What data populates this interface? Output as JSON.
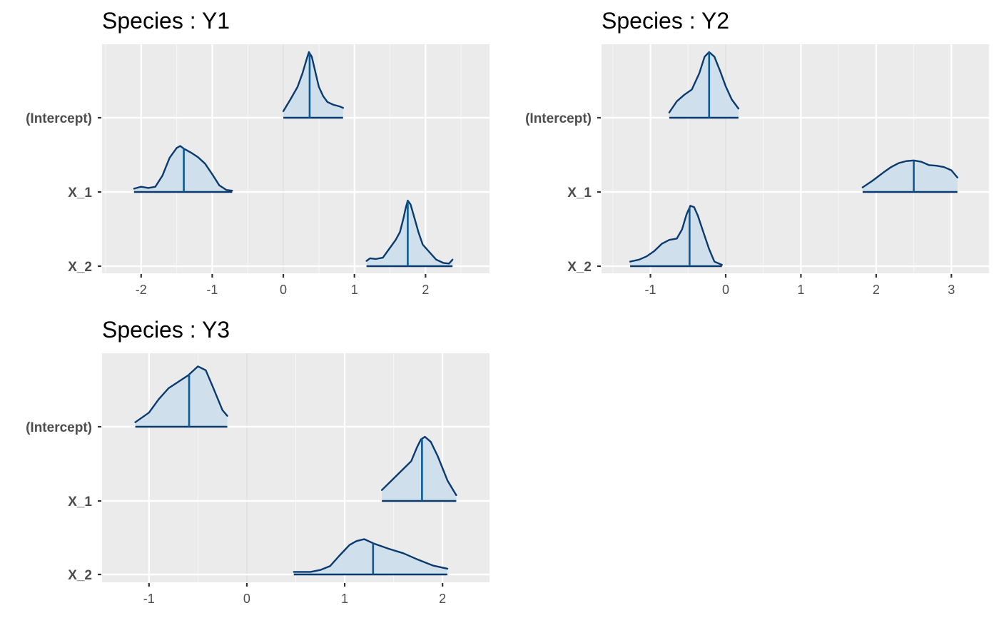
{
  "colors": {
    "panel_background": "#ebebeb",
    "grid_major": "#ffffff",
    "grid_minor": "#f5f5f5",
    "zero_line": "#dcdcdc",
    "density_line": "#0b3a6e",
    "density_fill": "#cfe0ec",
    "median_line": "#0c5a94",
    "tick": "#333333"
  },
  "chart_data": [
    {
      "type": "density-ridges",
      "title": "Species : Y1",
      "xlim": [
        -2.55,
        2.9
      ],
      "x_ticks": [
        -2,
        -1,
        0,
        1,
        2
      ],
      "x_tick_labels": [
        "-2",
        "-1",
        "0",
        "1",
        "2"
      ],
      "categories": [
        "(Intercept)",
        "X_1",
        "X_2"
      ],
      "grid": true,
      "series": [
        {
          "x": [
            0.0,
            0.1,
            0.2,
            0.27,
            0.33,
            0.36,
            0.4,
            0.45,
            0.5,
            0.56,
            0.62,
            0.7,
            0.8,
            0.84
          ],
          "density": [
            0.1,
            0.28,
            0.47,
            0.68,
            0.9,
            1.0,
            0.93,
            0.7,
            0.47,
            0.33,
            0.24,
            0.2,
            0.17,
            0.15
          ],
          "range": [
            0.0,
            0.84
          ],
          "median": 0.37
        },
        {
          "x": [
            -2.1,
            -2.0,
            -1.9,
            -1.8,
            -1.7,
            -1.6,
            -1.5,
            -1.45,
            -1.4,
            -1.3,
            -1.2,
            -1.1,
            -1.0,
            -0.9,
            -0.8,
            -0.72
          ],
          "density": [
            0.05,
            0.08,
            0.06,
            0.08,
            0.25,
            0.52,
            0.67,
            0.7,
            0.66,
            0.6,
            0.53,
            0.43,
            0.27,
            0.1,
            0.03,
            0.02
          ],
          "range": [
            -2.1,
            -0.72
          ],
          "median": -1.4
        },
        {
          "x": [
            1.17,
            1.22,
            1.3,
            1.4,
            1.5,
            1.58,
            1.64,
            1.69,
            1.72,
            1.75,
            1.79,
            1.84,
            1.9,
            1.96,
            2.05,
            2.15,
            2.25,
            2.33,
            2.38
          ],
          "density": [
            0.08,
            0.12,
            0.11,
            0.13,
            0.28,
            0.4,
            0.52,
            0.73,
            0.88,
            1.0,
            0.94,
            0.75,
            0.52,
            0.33,
            0.22,
            0.1,
            0.05,
            0.04,
            0.1
          ],
          "range": [
            1.17,
            2.38
          ],
          "median": 1.75
        }
      ]
    },
    {
      "type": "density-ridges",
      "title": "Species : Y2",
      "xlim": [
        -1.65,
        3.5
      ],
      "x_ticks": [
        -1,
        0,
        1,
        2,
        3
      ],
      "x_tick_labels": [
        "-1",
        "0",
        "1",
        "2",
        "3"
      ],
      "categories": [
        "(Intercept)",
        "X_1",
        "X_2"
      ],
      "grid": true,
      "series": [
        {
          "x": [
            -0.75,
            -0.65,
            -0.55,
            -0.45,
            -0.35,
            -0.28,
            -0.22,
            -0.15,
            -0.07,
            0.0,
            0.08,
            0.17
          ],
          "density": [
            0.08,
            0.25,
            0.35,
            0.43,
            0.68,
            0.93,
            1.0,
            0.93,
            0.7,
            0.48,
            0.28,
            0.14
          ],
          "range": [
            -0.75,
            0.17
          ],
          "median": -0.22
        },
        {
          "x": [
            1.82,
            1.95,
            2.1,
            2.2,
            2.3,
            2.4,
            2.5,
            2.6,
            2.7,
            2.8,
            2.9,
            3.0,
            3.08
          ],
          "density": [
            0.07,
            0.17,
            0.3,
            0.38,
            0.44,
            0.47,
            0.48,
            0.46,
            0.41,
            0.4,
            0.38,
            0.33,
            0.22
          ],
          "range": [
            1.82,
            3.08
          ],
          "median": 2.5
        },
        {
          "x": [
            -1.27,
            -1.15,
            -1.05,
            -0.95,
            -0.85,
            -0.75,
            -0.65,
            -0.58,
            -0.52,
            -0.47,
            -0.42,
            -0.37,
            -0.3,
            -0.22,
            -0.15,
            -0.05
          ],
          "density": [
            0.07,
            0.1,
            0.15,
            0.23,
            0.34,
            0.4,
            0.42,
            0.56,
            0.79,
            0.92,
            0.9,
            0.77,
            0.53,
            0.26,
            0.07,
            0.02
          ],
          "range": [
            -1.27,
            -0.05
          ],
          "median": -0.48
        }
      ]
    },
    {
      "type": "density-ridges",
      "title": "Species : Y3",
      "xlim": [
        -1.48,
        2.48
      ],
      "x_ticks": [
        -1,
        0,
        1,
        2
      ],
      "x_tick_labels": [
        "-1",
        "0",
        "1",
        "2"
      ],
      "categories": [
        "(Intercept)",
        "X_1",
        "X_2"
      ],
      "grid": true,
      "series": [
        {
          "x": [
            -1.14,
            -1.0,
            -0.9,
            -0.8,
            -0.7,
            -0.6,
            -0.5,
            -0.42,
            -0.35,
            -0.25,
            -0.2
          ],
          "density": [
            0.07,
            0.22,
            0.43,
            0.6,
            0.7,
            0.8,
            0.94,
            0.88,
            0.63,
            0.26,
            0.17
          ],
          "range": [
            -1.14,
            -0.2
          ],
          "median": -0.59
        },
        {
          "x": [
            1.38,
            1.5,
            1.6,
            1.68,
            1.74,
            1.78,
            1.82,
            1.88,
            1.95,
            2.05,
            2.14
          ],
          "density": [
            0.17,
            0.35,
            0.5,
            0.62,
            0.84,
            0.96,
            1.0,
            0.92,
            0.7,
            0.32,
            0.09
          ],
          "range": [
            1.38,
            2.14
          ],
          "median": 1.79
        },
        {
          "x": [
            0.48,
            0.65,
            0.75,
            0.85,
            0.95,
            1.05,
            1.12,
            1.2,
            1.3,
            1.45,
            1.6,
            1.75,
            1.9,
            2.05
          ],
          "density": [
            0.04,
            0.04,
            0.07,
            0.13,
            0.3,
            0.46,
            0.52,
            0.55,
            0.48,
            0.4,
            0.33,
            0.23,
            0.14,
            0.09
          ],
          "range": [
            0.48,
            2.05
          ],
          "median": 1.29
        }
      ]
    }
  ]
}
